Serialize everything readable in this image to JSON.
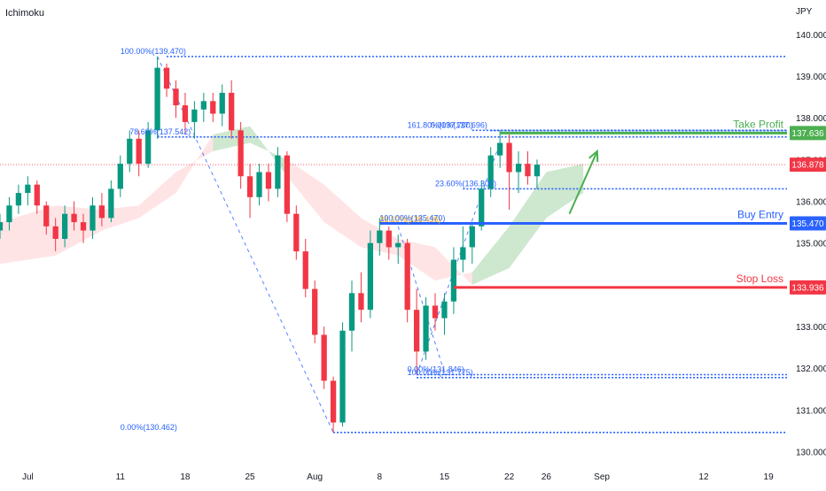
{
  "indicator": {
    "name": "Ichimoku"
  },
  "chart_data": {
    "type": "candlestick",
    "currency": "JPY",
    "x_ticks": [
      {
        "label": "Jul",
        "day": 0
      },
      {
        "label": "11",
        "day": 10
      },
      {
        "label": "18",
        "day": 17
      },
      {
        "label": "25",
        "day": 24
      },
      {
        "label": "Aug",
        "day": 31
      },
      {
        "label": "8",
        "day": 38
      },
      {
        "label": "15",
        "day": 45
      },
      {
        "label": "22",
        "day": 52
      },
      {
        "label": "26",
        "day": 56
      },
      {
        "label": "Sep",
        "day": 62
      },
      {
        "label": "12",
        "day": 73
      },
      {
        "label": "19",
        "day": 80
      }
    ],
    "x_range": [
      -3,
      82
    ],
    "y_range": [
      129.8,
      140.4
    ],
    "y_ticks": [
      {
        "label": "140.000",
        "value": 140
      },
      {
        "label": "139.000",
        "value": 139
      },
      {
        "label": "138.000",
        "value": 138
      },
      {
        "label": "137.000",
        "value": 137
      },
      {
        "label": "136.000",
        "value": 136
      },
      {
        "label": "135.000",
        "value": 135
      },
      {
        "label": "133.000",
        "value": 133
      },
      {
        "label": "132.000",
        "value": 132
      },
      {
        "label": "131.000",
        "value": 131
      },
      {
        "label": "130.000",
        "value": 130
      }
    ],
    "ohlc": [
      [
        -3,
        135.3,
        135.7,
        135.1,
        135.5
      ],
      [
        -2,
        135.5,
        136.1,
        135.3,
        135.9
      ],
      [
        -1,
        135.9,
        136.4,
        135.7,
        136.2
      ],
      [
        0,
        136.2,
        136.6,
        135.9,
        136.4
      ],
      [
        1,
        136.4,
        136.5,
        135.7,
        135.9
      ],
      [
        2,
        135.9,
        136.0,
        135.2,
        135.4
      ],
      [
        3,
        135.4,
        135.6,
        134.8,
        135.1
      ],
      [
        4,
        135.1,
        135.9,
        134.9,
        135.7
      ],
      [
        5,
        135.7,
        136.0,
        135.3,
        135.5
      ],
      [
        6,
        135.5,
        135.7,
        135.0,
        135.3
      ],
      [
        7,
        135.3,
        136.1,
        135.1,
        135.9
      ],
      [
        8,
        135.9,
        136.2,
        135.4,
        135.6
      ],
      [
        9,
        135.6,
        136.5,
        135.5,
        136.3
      ],
      [
        10,
        136.3,
        137.1,
        136.1,
        136.9
      ],
      [
        11,
        136.9,
        137.7,
        136.7,
        137.5
      ],
      [
        12,
        137.5,
        137.7,
        136.6,
        136.9
      ],
      [
        13,
        136.9,
        137.9,
        136.8,
        137.7
      ],
      [
        14,
        137.7,
        139.47,
        137.5,
        139.2
      ],
      [
        15,
        139.2,
        139.3,
        138.5,
        138.7
      ],
      [
        16,
        138.7,
        138.9,
        138.0,
        138.3
      ],
      [
        17,
        138.3,
        138.6,
        137.6,
        137.9
      ],
      [
        18,
        137.9,
        138.4,
        137.5,
        138.2
      ],
      [
        19,
        138.2,
        138.6,
        137.9,
        138.4
      ],
      [
        20,
        138.4,
        138.6,
        137.9,
        138.1
      ],
      [
        21,
        138.1,
        138.8,
        137.8,
        138.6
      ],
      [
        22,
        138.6,
        138.9,
        137.5,
        137.7
      ],
      [
        23,
        137.7,
        137.9,
        136.3,
        136.6
      ],
      [
        24,
        136.6,
        136.9,
        135.6,
        136.1
      ],
      [
        25,
        136.1,
        136.9,
        135.9,
        136.7
      ],
      [
        26,
        136.7,
        136.9,
        136.0,
        136.3
      ],
      [
        27,
        136.3,
        137.3,
        136.1,
        137.1
      ],
      [
        28,
        137.1,
        137.2,
        135.5,
        135.7
      ],
      [
        29,
        135.7,
        135.9,
        134.6,
        134.8
      ],
      [
        30,
        134.8,
        135.1,
        133.7,
        133.9
      ],
      [
        31,
        133.9,
        134.1,
        132.6,
        132.8
      ],
      [
        32,
        132.8,
        133.0,
        131.5,
        131.7
      ],
      [
        33,
        131.7,
        131.8,
        130.462,
        130.7
      ],
      [
        34,
        130.7,
        133.1,
        130.6,
        132.9
      ],
      [
        35,
        132.9,
        134.1,
        132.4,
        133.8
      ],
      [
        36,
        133.8,
        134.3,
        133.1,
        133.4
      ],
      [
        37,
        133.4,
        135.3,
        133.2,
        135.0
      ],
      [
        38,
        135.0,
        135.6,
        134.7,
        135.3
      ],
      [
        39,
        135.3,
        135.4,
        134.6,
        134.9
      ],
      [
        40,
        134.9,
        135.2,
        134.5,
        135.0
      ],
      [
        41,
        135.0,
        135.1,
        133.1,
        133.4
      ],
      [
        42,
        133.4,
        133.9,
        131.846,
        132.4
      ],
      [
        43,
        132.4,
        133.7,
        132.2,
        133.5
      ],
      [
        44,
        133.5,
        133.8,
        132.9,
        133.2
      ],
      [
        45,
        133.2,
        133.8,
        132.8,
        133.6
      ],
      [
        46,
        133.6,
        134.9,
        133.3,
        134.6
      ],
      [
        47,
        134.6,
        135.4,
        134.3,
        134.9
      ],
      [
        48,
        134.9,
        135.5,
        134.5,
        135.4
      ],
      [
        49,
        135.4,
        136.5,
        135.3,
        136.3
      ],
      [
        50,
        136.3,
        137.3,
        136.1,
        137.1
      ],
      [
        51,
        137.1,
        137.696,
        136.8,
        137.4
      ],
      [
        52,
        137.4,
        137.6,
        135.8,
        136.7
      ],
      [
        53,
        136.7,
        137.2,
        136.2,
        136.9
      ],
      [
        54,
        136.9,
        137.2,
        136.4,
        136.6
      ],
      [
        55,
        136.6,
        137.0,
        136.3,
        136.878
      ]
    ],
    "ichimoku_cloud": {
      "days": [
        -3,
        3,
        8,
        12,
        16,
        20,
        24,
        28,
        32,
        36,
        40,
        44,
        48,
        52,
        56,
        60
      ],
      "span_a": [
        134.5,
        134.7,
        135.3,
        135.6,
        136.2,
        137.6,
        137.8,
        136.6,
        135.5,
        134.9,
        134.7,
        134.1,
        134.3,
        135.4,
        136.7,
        136.9
      ],
      "span_b": [
        135.5,
        135.9,
        135.8,
        135.9,
        136.7,
        137.2,
        137.4,
        137.0,
        136.4,
        135.6,
        135.1,
        134.9,
        134.0,
        134.4,
        135.6,
        136.2
      ]
    },
    "fib_labels": [
      {
        "text": "100.00%(139.470)",
        "value": 139.47,
        "day": 10,
        "color": "#2962ff"
      },
      {
        "text": "78.60%(137.542)",
        "value": 137.542,
        "day": 11,
        "color": "#2962ff"
      },
      {
        "text": "0.00%(130.462)",
        "value": 130.462,
        "day": 10,
        "color": "#2962ff"
      },
      {
        "text": "0.00%(137.696)",
        "value": 137.696,
        "day": 43.5,
        "color": "#2962ff"
      },
      {
        "text": "161.80%(137.700)",
        "value": 137.7,
        "day": 41,
        "color": "#2962ff"
      },
      {
        "text": "23.60%(136.300)",
        "value": 136.3,
        "day": 44,
        "color": "#2962ff"
      },
      {
        "text": "38.20%(135.436)",
        "value": 135.436,
        "day": 38,
        "color": "#f7a600"
      },
      {
        "text": "100.00%(135.470)",
        "value": 135.47,
        "day": 38,
        "color": "#2962ff"
      },
      {
        "text": "100.00%(131.775)",
        "value": 131.775,
        "day": 41,
        "color": "#2962ff"
      },
      {
        "text": "0.00%(131.846)",
        "value": 131.846,
        "day": 41,
        "color": "#2962ff"
      }
    ],
    "dotted_levels": [
      {
        "value": 139.47,
        "from": 15
      },
      {
        "value": 137.542,
        "from": 14
      },
      {
        "value": 130.462,
        "from": 33
      },
      {
        "value": 137.696,
        "from": 50
      },
      {
        "value": 137.7,
        "from": 48
      },
      {
        "value": 136.3,
        "from": 47
      },
      {
        "value": 131.775,
        "from": 42
      },
      {
        "value": 131.846,
        "from": 42
      }
    ],
    "current_price": {
      "label": "136.878",
      "value": 136.878
    },
    "trade_levels": [
      {
        "name": "Take Profit",
        "label": "137.636",
        "value": 137.636,
        "from": 51,
        "color": "#4caf50"
      },
      {
        "name": "Buy Entry",
        "label": "135.470",
        "value": 135.47,
        "from": 38,
        "color": "#2962ff"
      },
      {
        "name": "Stop Loss",
        "label": "133.936",
        "value": 133.936,
        "from": 46,
        "color": "#f23645"
      }
    ],
    "arrow": {
      "from": [
        58.5,
        135.7
      ],
      "to": [
        61.5,
        137.2
      ],
      "color": "#4caf50"
    },
    "diagonals": [
      {
        "from": [
          14,
          139.47
        ],
        "to": [
          33,
          130.462
        ]
      },
      {
        "from": [
          40,
          135.4
        ],
        "to": [
          45,
          131.9
        ]
      },
      {
        "from": [
          42,
          131.846
        ],
        "to": [
          51,
          137.4
        ]
      }
    ],
    "colors": {
      "up": "#089981",
      "down": "#f23645",
      "cloud_up": "#a5d6a7",
      "cloud_down": "#ffcdd2",
      "fib": "#2962ff"
    }
  }
}
